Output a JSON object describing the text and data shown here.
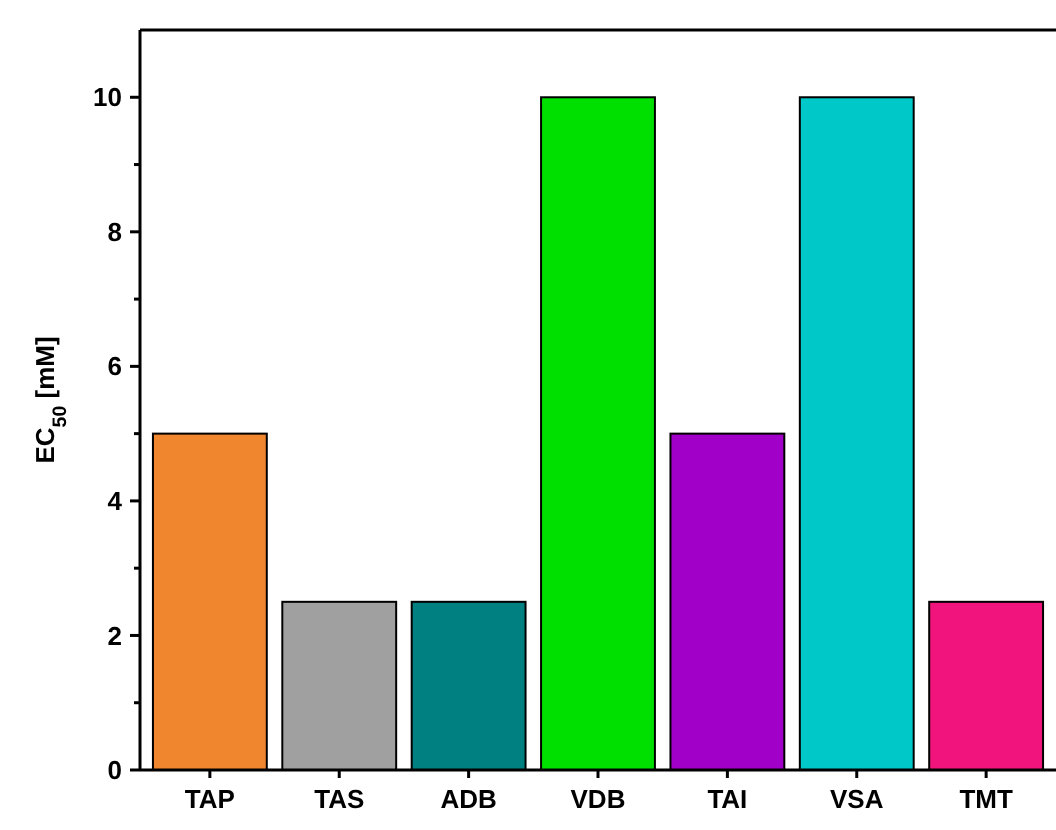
{
  "chart_data": {
    "type": "bar",
    "ylabel": "EC$_{50}$ [mM]",
    "categories": [
      "TAP",
      "TAS",
      "ADB",
      "VDB",
      "TAI",
      "VSA",
      "TMT"
    ],
    "values": [
      5,
      2.5,
      2.5,
      10,
      5,
      10,
      2.5
    ],
    "colors": [
      "#f0862d",
      "#a0a0a0",
      "#008080",
      "#00e000",
      "#a000c8",
      "#00c8c8",
      "#f0147c"
    ],
    "ylim": [
      0,
      11
    ],
    "yticks": [
      0,
      {
        "value": 1,
        "label": null
      },
      2,
      {
        "value": 3,
        "label": null
      },
      4,
      {
        "value": 5,
        "label": null
      },
      6,
      {
        "value": 7,
        "label": null
      },
      8,
      {
        "value": 9,
        "label": null
      },
      10
    ],
    "grid": false
  }
}
